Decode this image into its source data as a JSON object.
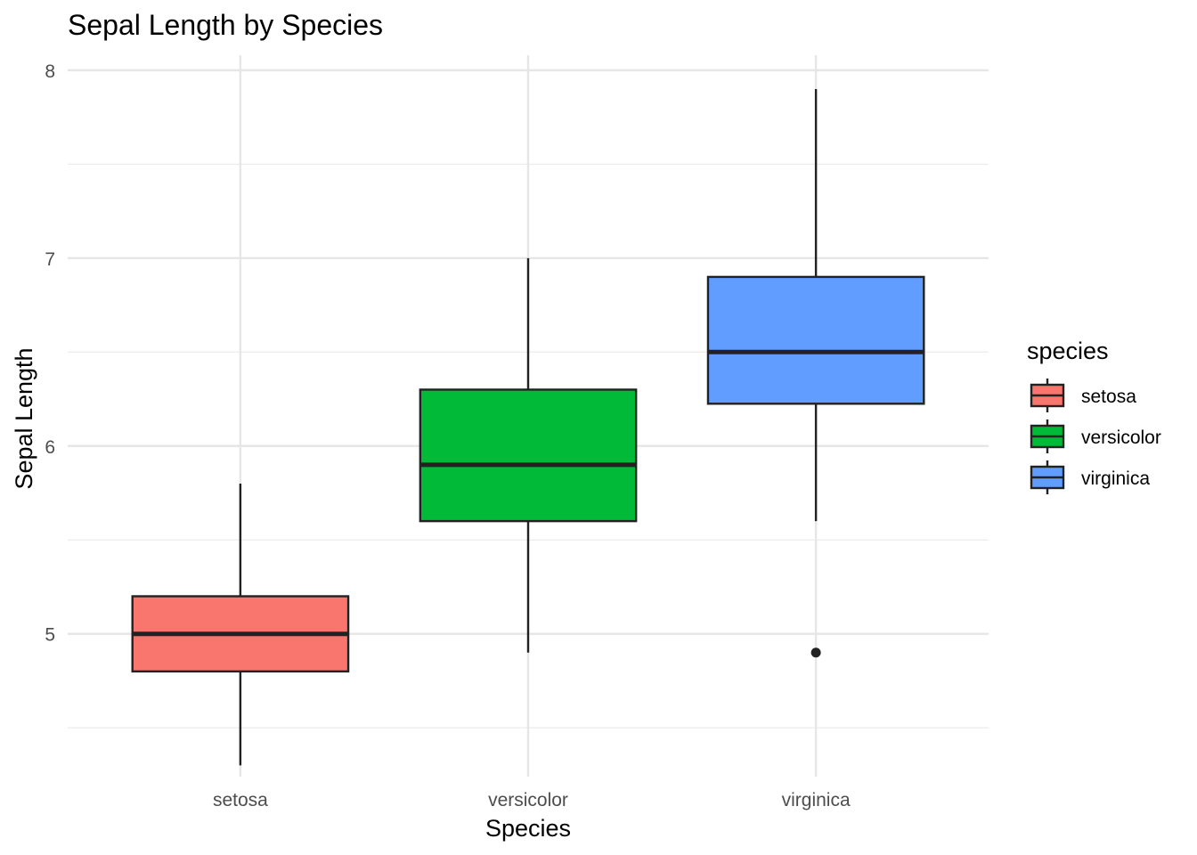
{
  "chart_data": {
    "type": "box",
    "title": "Sepal Length by Species",
    "xlabel": "Species",
    "ylabel": "Sepal Length",
    "categories": [
      "setosa",
      "versicolor",
      "virginica"
    ],
    "ylim": [
      4.24,
      8.08
    ],
    "yticks": [
      5,
      6,
      7,
      8
    ],
    "ytick_labels": [
      "5",
      "6",
      "7",
      "8"
    ],
    "grid": true,
    "legend": {
      "title": "species",
      "position": "right"
    },
    "series": [
      {
        "name": "setosa",
        "color": "#F8766D",
        "min": 4.3,
        "q1": 4.8,
        "median": 5.0,
        "q3": 5.2,
        "max": 5.8,
        "outliers": []
      },
      {
        "name": "versicolor",
        "color": "#00BA38",
        "min": 4.9,
        "q1": 5.6,
        "median": 5.9,
        "q3": 6.3,
        "max": 7.0,
        "outliers": []
      },
      {
        "name": "virginica",
        "color": "#619CFF",
        "min": 5.6,
        "q1": 6.225,
        "median": 6.5,
        "q3": 6.9,
        "max": 7.9,
        "outliers": [
          4.9
        ]
      }
    ]
  }
}
